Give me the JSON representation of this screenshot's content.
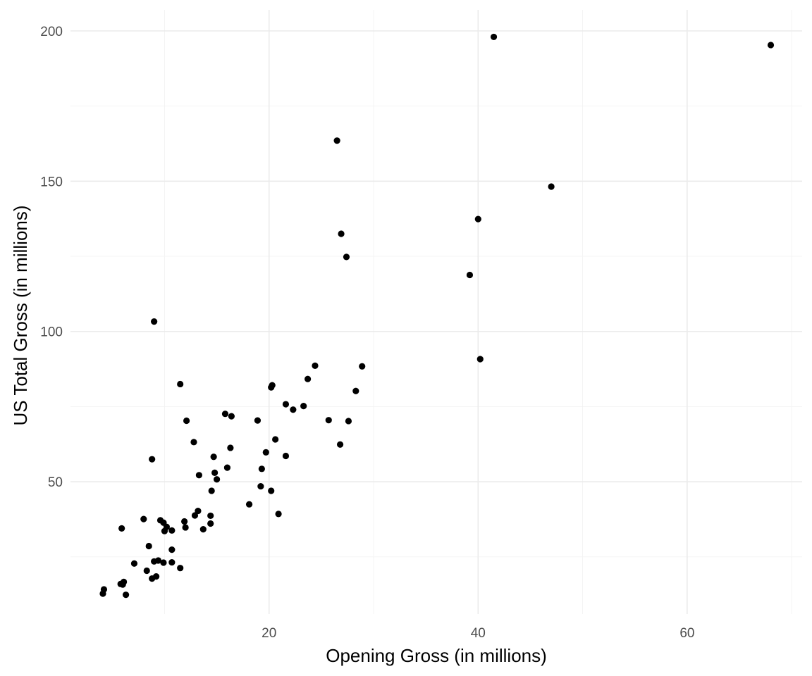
{
  "chart_data": {
    "type": "scatter",
    "xlabel": "Opening Gross (in millions)",
    "ylabel": "US Total Gross (in millions)",
    "xlim": [
      1,
      71
    ],
    "ylim": [
      6,
      207
    ],
    "x_ticks": [
      20,
      40,
      60
    ],
    "y_ticks": [
      50,
      100,
      150,
      200
    ],
    "x_minor": [
      10,
      30,
      50,
      70
    ],
    "y_minor": [
      25,
      75,
      125,
      175
    ],
    "grid": true,
    "point_color": "#000000",
    "points": [
      {
        "x": 41.5,
        "y": 198.0
      },
      {
        "x": 68.0,
        "y": 195.3
      },
      {
        "x": 26.5,
        "y": 163.5
      },
      {
        "x": 47.0,
        "y": 148.2
      },
      {
        "x": 40.0,
        "y": 137.4
      },
      {
        "x": 26.9,
        "y": 132.5
      },
      {
        "x": 27.4,
        "y": 124.8
      },
      {
        "x": 39.2,
        "y": 118.8
      },
      {
        "x": 9.0,
        "y": 103.3
      },
      {
        "x": 40.2,
        "y": 90.8
      },
      {
        "x": 24.4,
        "y": 88.6
      },
      {
        "x": 28.9,
        "y": 88.4
      },
      {
        "x": 11.5,
        "y": 82.5
      },
      {
        "x": 20.3,
        "y": 82.1
      },
      {
        "x": 20.2,
        "y": 81.4
      },
      {
        "x": 23.7,
        "y": 84.2
      },
      {
        "x": 28.3,
        "y": 80.2
      },
      {
        "x": 21.6,
        "y": 75.8
      },
      {
        "x": 23.3,
        "y": 75.2
      },
      {
        "x": 22.3,
        "y": 74.0
      },
      {
        "x": 15.8,
        "y": 72.6
      },
      {
        "x": 16.4,
        "y": 71.8
      },
      {
        "x": 12.1,
        "y": 70.3
      },
      {
        "x": 18.9,
        "y": 70.4
      },
      {
        "x": 25.7,
        "y": 70.5
      },
      {
        "x": 27.6,
        "y": 70.2
      },
      {
        "x": 20.6,
        "y": 64.1
      },
      {
        "x": 12.8,
        "y": 63.2
      },
      {
        "x": 26.8,
        "y": 62.4
      },
      {
        "x": 16.3,
        "y": 61.3
      },
      {
        "x": 19.7,
        "y": 59.8
      },
      {
        "x": 14.7,
        "y": 58.3
      },
      {
        "x": 21.6,
        "y": 58.6
      },
      {
        "x": 8.8,
        "y": 57.5
      },
      {
        "x": 16.0,
        "y": 54.7
      },
      {
        "x": 19.3,
        "y": 54.3
      },
      {
        "x": 14.8,
        "y": 53.0
      },
      {
        "x": 13.3,
        "y": 52.2
      },
      {
        "x": 15.0,
        "y": 50.8
      },
      {
        "x": 19.2,
        "y": 48.5
      },
      {
        "x": 14.5,
        "y": 47.0
      },
      {
        "x": 20.2,
        "y": 47.0
      },
      {
        "x": 18.1,
        "y": 42.5
      },
      {
        "x": 13.2,
        "y": 40.3
      },
      {
        "x": 20.9,
        "y": 39.3
      },
      {
        "x": 12.9,
        "y": 38.8
      },
      {
        "x": 14.4,
        "y": 38.7
      },
      {
        "x": 8.0,
        "y": 37.6
      },
      {
        "x": 9.6,
        "y": 37.2
      },
      {
        "x": 11.9,
        "y": 36.8
      },
      {
        "x": 9.9,
        "y": 36.4
      },
      {
        "x": 14.4,
        "y": 36.1
      },
      {
        "x": 10.2,
        "y": 35.0
      },
      {
        "x": 12.0,
        "y": 34.8
      },
      {
        "x": 5.9,
        "y": 34.5
      },
      {
        "x": 13.7,
        "y": 34.2
      },
      {
        "x": 10.0,
        "y": 33.6
      },
      {
        "x": 10.7,
        "y": 33.8
      },
      {
        "x": 8.5,
        "y": 28.6
      },
      {
        "x": 10.7,
        "y": 27.4
      },
      {
        "x": 7.1,
        "y": 22.8
      },
      {
        "x": 9.4,
        "y": 23.8
      },
      {
        "x": 9.0,
        "y": 23.5
      },
      {
        "x": 10.7,
        "y": 23.2
      },
      {
        "x": 9.9,
        "y": 23.1
      },
      {
        "x": 11.5,
        "y": 21.3
      },
      {
        "x": 8.3,
        "y": 20.4
      },
      {
        "x": 9.2,
        "y": 18.5
      },
      {
        "x": 8.8,
        "y": 17.8
      },
      {
        "x": 6.1,
        "y": 16.7
      },
      {
        "x": 5.8,
        "y": 16.0
      },
      {
        "x": 6.0,
        "y": 15.8
      },
      {
        "x": 4.2,
        "y": 14.2
      },
      {
        "x": 4.1,
        "y": 12.8
      },
      {
        "x": 6.3,
        "y": 12.4
      }
    ]
  }
}
